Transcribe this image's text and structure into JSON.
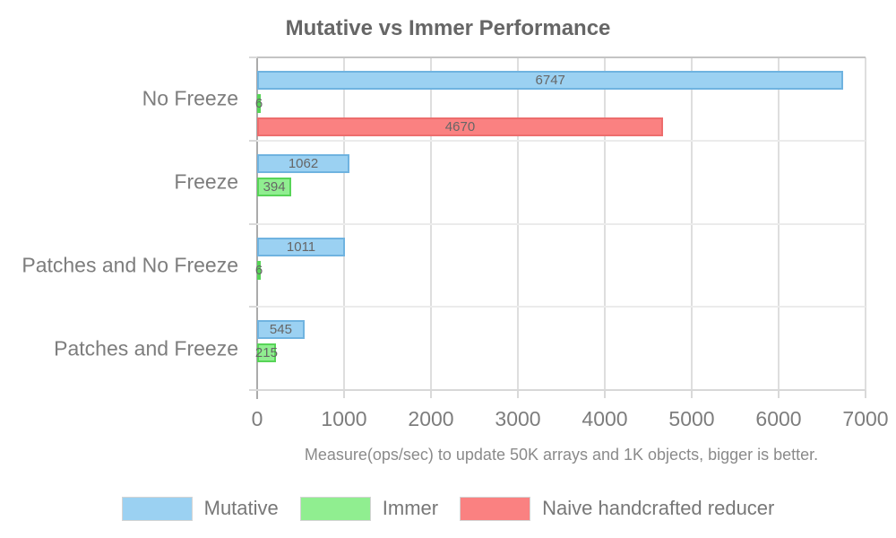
{
  "chart_data": {
    "type": "bar",
    "orientation": "horizontal",
    "title": "Mutative vs Immer Performance",
    "xlabel": "Measure(ops/sec) to update 50K arrays and 1K objects, bigger is better.",
    "categories": [
      "No Freeze",
      "Freeze",
      "Patches and No Freeze",
      "Patches and Freeze"
    ],
    "series": [
      {
        "name": "Mutative",
        "fill": "#9BD1F2",
        "border": "#6FB3E0",
        "values": [
          6747,
          1062,
          1011,
          545
        ]
      },
      {
        "name": "Immer",
        "fill": "#90EE90",
        "border": "#57D457",
        "values": [
          6,
          394,
          6,
          215
        ]
      },
      {
        "name": "Naive handcrafted reducer",
        "fill": "#FA8181",
        "border": "#ED6D6D",
        "values": [
          4670,
          null,
          null,
          null
        ]
      }
    ],
    "xlim": [
      0,
      7000
    ],
    "xticks": [
      0,
      1000,
      2000,
      3000,
      4000,
      5000,
      6000,
      7000
    ],
    "value_labels": true,
    "grid": true,
    "legend_position": "bottom"
  },
  "style": {
    "title_color": "#666666",
    "axis_label_color": "#7d7d7d",
    "value_label_color": "#666666",
    "caption_color": "#8a8a8a",
    "grid_color": "#dedede",
    "zero_line_color": "#ababab",
    "background": "#ffffff"
  }
}
